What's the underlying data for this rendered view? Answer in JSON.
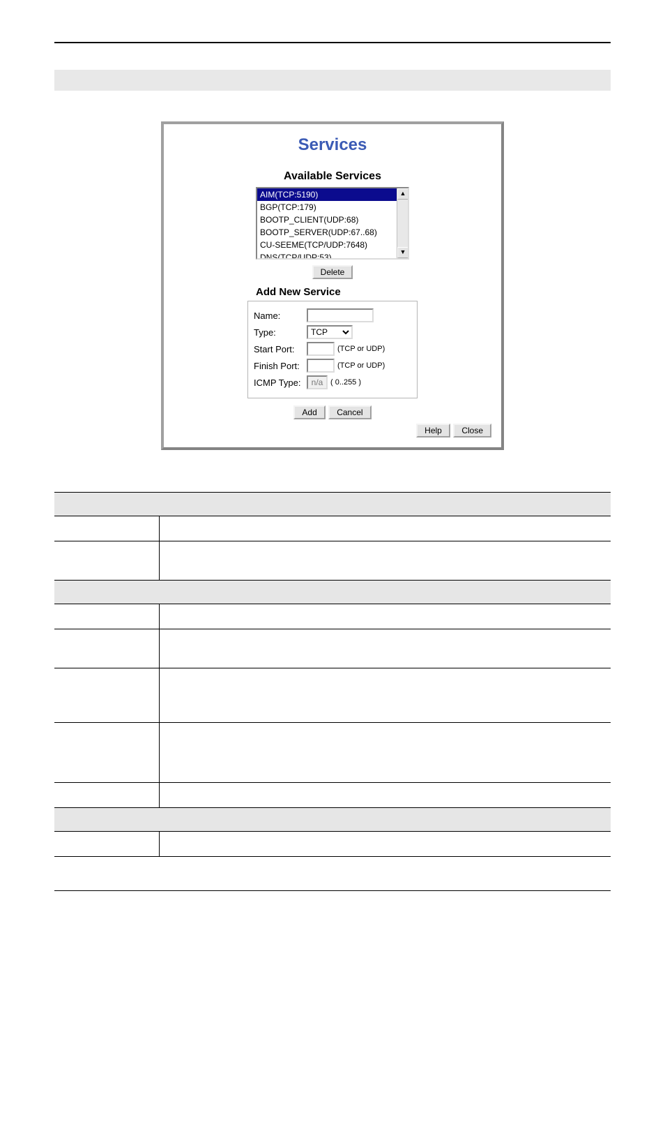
{
  "panel": {
    "title": "Services",
    "available_title": "Available Services",
    "items": [
      "AIM(TCP:5190)",
      "BGP(TCP:179)",
      "BOOTP_CLIENT(UDP:68)",
      "BOOTP_SERVER(UDP:67..68)",
      "CU-SEEME(TCP/UDP:7648)",
      "DNS(TCP/UDP:53)"
    ],
    "selected_index": 0,
    "delete_label": "Delete",
    "add_section_title": "Add New Service",
    "form": {
      "name_label": "Name:",
      "name_value": "",
      "type_label": "Type:",
      "type_value": "TCP",
      "start_label": "Start Port:",
      "start_value": "",
      "finish_label": "Finish Port:",
      "finish_value": "",
      "port_hint": "(TCP or UDP)",
      "icmp_label": "ICMP Type:",
      "icmp_value": "n/a",
      "icmp_hint": "( 0..255 )"
    },
    "add_label": "Add",
    "cancel_label": "Cancel",
    "help_label": "Help",
    "close_label": "Close"
  },
  "colors": {
    "title_color": "#3b5bb5",
    "panel_border": "#848484",
    "selection_bg": "#0b0b8e",
    "gray_band": "#e8e8e8",
    "button_bg": "#e4e4e4"
  },
  "table": {
    "rows": [
      {
        "type": "header",
        "cols": 1
      },
      {
        "type": "row",
        "height": "normal"
      },
      {
        "type": "row",
        "height": "tall"
      },
      {
        "type": "header",
        "cols": 1
      },
      {
        "type": "row",
        "height": "normal"
      },
      {
        "type": "row",
        "height": "tall"
      },
      {
        "type": "row",
        "height": "taller"
      },
      {
        "type": "row",
        "height": "tallest"
      },
      {
        "type": "row",
        "height": "normal"
      },
      {
        "type": "header",
        "cols": 1
      },
      {
        "type": "row",
        "height": "normal"
      }
    ]
  }
}
